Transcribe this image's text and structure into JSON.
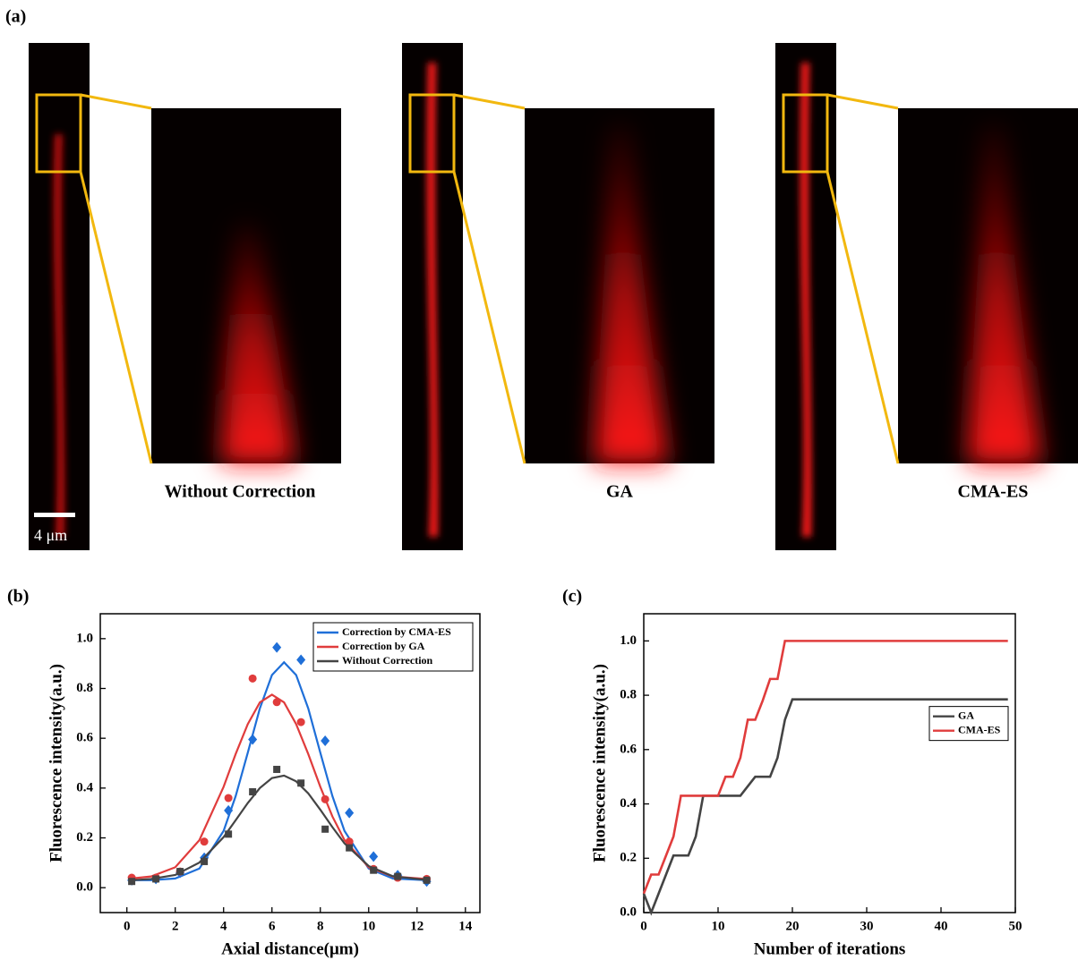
{
  "figure": {
    "panels": [
      "(a)",
      "(b)",
      "(c)"
    ],
    "images": [
      {
        "caption": "Without Correction"
      },
      {
        "caption": "GA"
      },
      {
        "caption": "CMA-ES"
      }
    ],
    "scale_bar": "4 μm"
  },
  "chart_data": [
    {
      "type": "scatter",
      "x_label": "Axial distance(μm)",
      "y_label": "Fluorescence intensity(a.u.)",
      "x": [
        0.2,
        1.2,
        2.2,
        3.2,
        4.2,
        5.2,
        6.2,
        7.2,
        8.2,
        9.2,
        10.2,
        11.2,
        12.4
      ],
      "fit_x": [
        0.2,
        1,
        2,
        3,
        4,
        4.5,
        5,
        5.5,
        6,
        6.5,
        7,
        7.5,
        8,
        8.5,
        9,
        10,
        11,
        12.4
      ],
      "series": [
        {
          "name": "Correction by CMA-ES",
          "color": "#1f6fd8",
          "marker": "diamond",
          "values": [
            0.03,
            0.035,
            0.06,
            0.12,
            0.31,
            0.595,
            0.965,
            0.915,
            0.59,
            0.3,
            0.125,
            0.05,
            0.025
          ],
          "fit": [
            0.03,
            0.03,
            0.037,
            0.077,
            0.228,
            0.368,
            0.542,
            0.72,
            0.854,
            0.905,
            0.854,
            0.72,
            0.542,
            0.368,
            0.228,
            0.077,
            0.037,
            0.03
          ]
        },
        {
          "name": "Correction by GA",
          "color": "#e03c3c",
          "marker": "circle",
          "values": [
            0.04,
            0.04,
            0.065,
            0.185,
            0.36,
            0.84,
            0.745,
            0.665,
            0.355,
            0.185,
            0.075,
            0.04,
            0.035
          ],
          "fit": [
            0.037,
            0.045,
            0.082,
            0.191,
            0.405,
            0.537,
            0.657,
            0.744,
            0.775,
            0.744,
            0.657,
            0.537,
            0.405,
            0.286,
            0.191,
            0.082,
            0.045,
            0.035
          ]
        },
        {
          "name": "Without Correction",
          "color": "#444444",
          "marker": "square",
          "values": [
            0.025,
            0.035,
            0.065,
            0.105,
            0.215,
            0.385,
            0.475,
            0.42,
            0.235,
            0.16,
            0.07,
            0.045,
            0.03
          ],
          "fit": [
            0.03,
            0.035,
            0.051,
            0.101,
            0.203,
            0.271,
            0.34,
            0.4,
            0.44,
            0.45,
            0.427,
            0.379,
            0.313,
            0.243,
            0.178,
            0.087,
            0.046,
            0.031
          ]
        }
      ],
      "xlim": [
        -1.1,
        14.6
      ],
      "xticks": [
        0,
        2,
        4,
        6,
        8,
        10,
        12,
        14
      ],
      "ylim": [
        -0.1,
        1.1
      ],
      "yticks": [
        {
          "value": 0,
          "label": "0.0"
        },
        0.2,
        0.4,
        0.6,
        0.8,
        {
          "value": 1,
          "label": "1.0"
        }
      ],
      "legend": "top-right"
    },
    {
      "type": "line",
      "x_label": "Number of iterations",
      "y_label": "Fluorescence intensity(a.u.)",
      "series": [
        {
          "name": "GA",
          "color": "#444444",
          "x": [
            0,
            1,
            2,
            3,
            4,
            6,
            7,
            8,
            13,
            15,
            17,
            18,
            19,
            20,
            49
          ],
          "values": [
            0.07,
            0,
            0.07,
            0.14,
            0.21,
            0.21,
            0.28,
            0.43,
            0.43,
            0.5,
            0.5,
            0.57,
            0.71,
            0.785,
            0.785
          ]
        },
        {
          "name": "CMA-ES",
          "color": "#e03c3c",
          "x": [
            0,
            1,
            2,
            3,
            4,
            5,
            10,
            11,
            12,
            13,
            14,
            15,
            16,
            17,
            18,
            19,
            49
          ],
          "values": [
            0.07,
            0.14,
            0.14,
            0.21,
            0.28,
            0.43,
            0.43,
            0.5,
            0.5,
            0.57,
            0.71,
            0.71,
            0.78,
            0.86,
            0.86,
            1,
            1
          ]
        }
      ],
      "xlim": [
        0,
        50
      ],
      "xticks": [
        0,
        10,
        20,
        30,
        40,
        50
      ],
      "ylim": [
        0,
        1.1
      ],
      "yticks": [
        {
          "value": 0,
          "label": "0.0"
        },
        0.2,
        0.4,
        0.6,
        0.8,
        {
          "value": 1,
          "label": "1.0"
        }
      ],
      "legend": "right"
    }
  ]
}
